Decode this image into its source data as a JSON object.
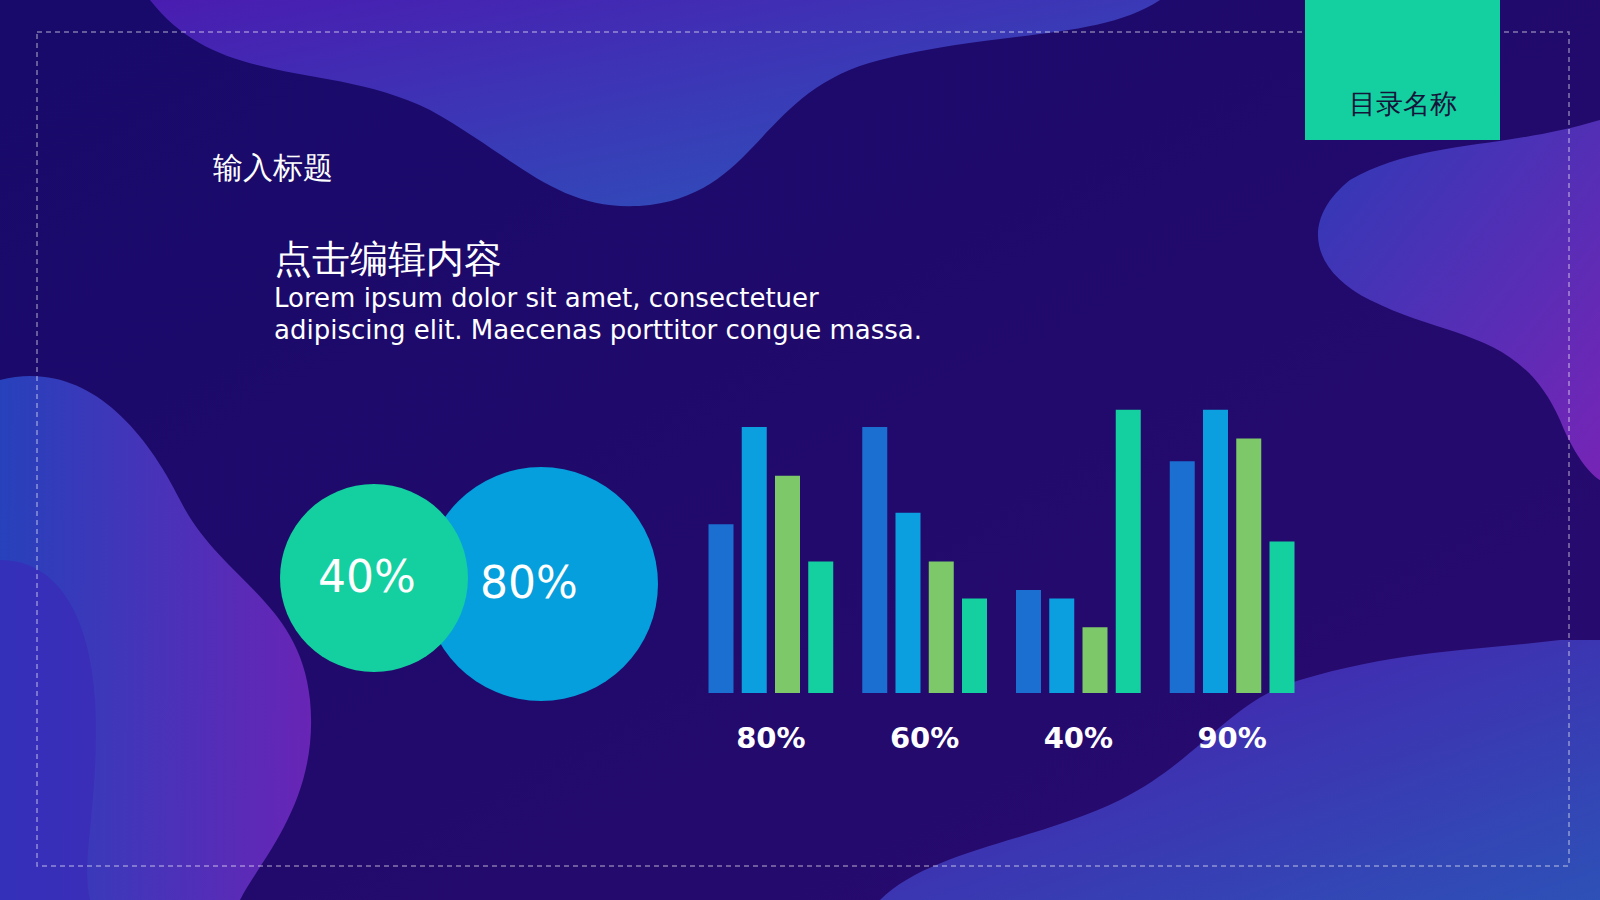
{
  "header": {
    "title": "输入标题",
    "tab": "目录名称"
  },
  "text_block": {
    "heading": "点击编辑内容",
    "body": [
      "Lorem ipsum dolor sit amet, consectetuer",
      "adipiscing elit. Maecenas porttitor congue massa."
    ]
  },
  "circles": [
    {
      "text": "40%",
      "color": "#14cfa0"
    },
    {
      "text": "80%",
      "color": "#049fdc"
    }
  ],
  "chart_data": {
    "type": "bar",
    "categories": [
      "80%",
      "60%",
      "40%",
      "90%"
    ],
    "series": [
      {
        "color": "#1a6fd1",
        "values": [
          59,
          93,
          36,
          81
        ]
      },
      {
        "color": "#0b9fe0",
        "values": [
          93,
          63,
          33,
          99
        ]
      },
      {
        "color": "#7dc96a",
        "values": [
          76,
          46,
          23,
          89
        ]
      },
      {
        "color": "#14cfa0",
        "values": [
          46,
          33,
          99,
          53
        ]
      }
    ],
    "ylim": [
      0,
      100
    ],
    "tick_labels": "x",
    "grid": false
  }
}
